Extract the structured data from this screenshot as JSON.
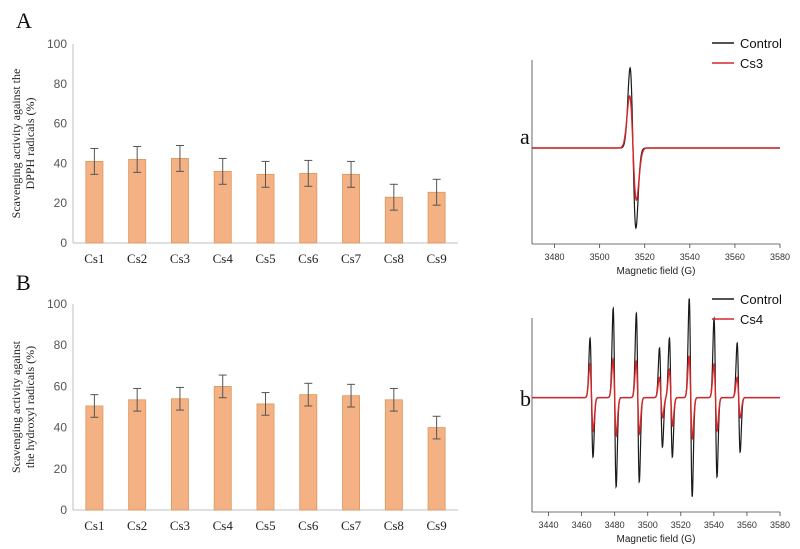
{
  "chart_data": [
    {
      "panel": "A",
      "type": "bar",
      "categories": [
        "Cs1",
        "Cs2",
        "Cs3",
        "Cs4",
        "Cs5",
        "Cs6",
        "Cs7",
        "Cs8",
        "Cs9"
      ],
      "values": [
        41,
        42,
        42.5,
        36,
        34.5,
        35,
        34.5,
        23,
        25.5
      ],
      "errors": [
        6.5,
        6.5,
        6.5,
        6.5,
        6.5,
        6.5,
        6.5,
        6.5,
        6.5
      ],
      "title": "",
      "ylabel": [
        "Scavenging activity against the",
        "DPPH radicals (%)"
      ],
      "ylim": [
        0,
        100
      ],
      "yticks": [
        0,
        20,
        40,
        60,
        80,
        100
      ],
      "bar_color": "#f4b183",
      "bar_edge": "#d9985f"
    },
    {
      "panel": "B",
      "type": "bar",
      "categories": [
        "Cs1",
        "Cs2",
        "Cs3",
        "Cs4",
        "Cs5",
        "Cs6",
        "Cs7",
        "Cs8",
        "Cs9"
      ],
      "values": [
        50.5,
        53.5,
        54,
        60,
        51.5,
        56,
        55.5,
        53.5,
        40
      ],
      "errors": [
        5.5,
        5.5,
        5.5,
        5.5,
        5.5,
        5.5,
        5.5,
        5.5,
        5.5
      ],
      "title": "",
      "ylabel": [
        "Scavenging activity against",
        "the hydroxyl radicals (%)"
      ],
      "ylim": [
        0,
        100
      ],
      "yticks": [
        0,
        20,
        40,
        60,
        80,
        100
      ],
      "bar_color": "#f4b183",
      "bar_edge": "#d9985f"
    },
    {
      "panel": "a",
      "type": "line",
      "xlabel": "Magnetic field (G)",
      "xlim": [
        3470,
        3580
      ],
      "xticks": [
        3480,
        3500,
        3520,
        3540,
        3560,
        3580
      ],
      "baseline": 0,
      "ylim": [
        -1.2,
        1.1
      ],
      "signals": [
        {
          "name": "Control",
          "color": "#1a1a1a",
          "centers": [
            3514.8
          ],
          "amps": [
            1.0
          ],
          "width": 1.3
        },
        {
          "name": "Cs3",
          "color": "#d62728",
          "centers": [
            3514.8
          ],
          "amps": [
            0.65
          ],
          "width": 1.5
        }
      ]
    },
    {
      "panel": "b",
      "type": "line",
      "xlabel": "Magnetic field (G)",
      "xlim": [
        3430,
        3580
      ],
      "xticks": [
        3440,
        3460,
        3480,
        3500,
        3520,
        3540,
        3560,
        3580
      ],
      "baseline": 0,
      "ylim": [
        -1.15,
        0.8
      ],
      "signals": [
        {
          "name": "Control",
          "color": "#1a1a1a",
          "centers": [
            3466,
            3480,
            3494,
            3508,
            3514,
            3526,
            3541,
            3555
          ],
          "amps": [
            0.6,
            0.9,
            0.85,
            0.5,
            0.6,
            1.0,
            0.8,
            0.55
          ],
          "width": 0.9
        },
        {
          "name": "Cs4",
          "color": "#d62728",
          "centers": [
            3466,
            3480,
            3494,
            3508,
            3514,
            3526,
            3541,
            3555
          ],
          "amps": [
            0.33,
            0.38,
            0.36,
            0.2,
            0.28,
            0.42,
            0.33,
            0.2
          ],
          "width": 1.0
        }
      ]
    }
  ],
  "labels": {
    "panel_A": "A",
    "panel_B": "B",
    "panel_a": "a",
    "panel_b": "b"
  }
}
